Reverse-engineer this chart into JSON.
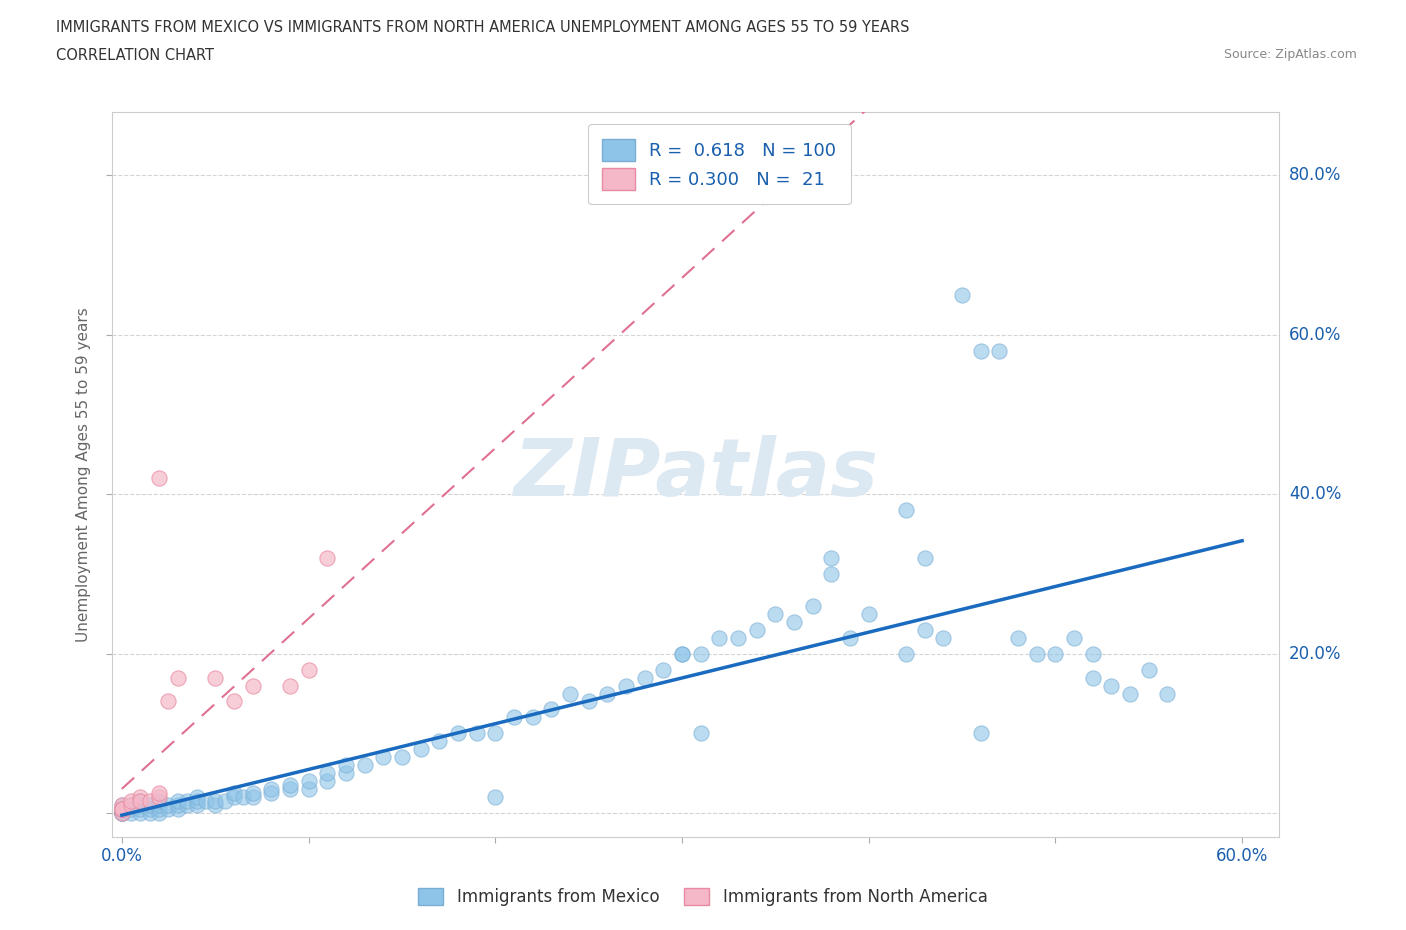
{
  "title_line1": "IMMIGRANTS FROM MEXICO VS IMMIGRANTS FROM NORTH AMERICA UNEMPLOYMENT AMONG AGES 55 TO 59 YEARS",
  "title_line2": "CORRELATION CHART",
  "source": "Source: ZipAtlas.com",
  "ylabel": "Unemployment Among Ages 55 to 59 years",
  "xlim": [
    -0.005,
    0.62
  ],
  "ylim": [
    -0.03,
    0.88
  ],
  "xticks": [
    0.0,
    0.1,
    0.2,
    0.3,
    0.4,
    0.5,
    0.6
  ],
  "xticklabels": [
    "0.0%",
    "",
    "",
    "",
    "",
    "",
    "60.0%"
  ],
  "yticks": [
    0.0,
    0.2,
    0.4,
    0.6,
    0.8
  ],
  "yticklabels_right": [
    "",
    "20.0%",
    "40.0%",
    "60.0%",
    "80.0%"
  ],
  "series1_label": "Immigrants from Mexico",
  "series1_color": "#8ec4e8",
  "series1_edge_color": "#7aadd4",
  "series1_line_color": "#1a6bbf",
  "series1_R": "0.618",
  "series1_N": "100",
  "series2_label": "Immigrants from North America",
  "series2_color": "#f5b8c8",
  "series2_edge_color": "#e88aa0",
  "series2_line_color": "#e07090",
  "series2_R": "0.300",
  "series2_N": "21",
  "legend_text_color": "#1a5fad",
  "background_color": "#ffffff",
  "watermark": "ZIPatlas",
  "grid_color": "#d0d0d0",
  "mexico_x": [
    0.0,
    0.0,
    0.0,
    0.0,
    0.0,
    0.0,
    0.0,
    0.005,
    0.005,
    0.005,
    0.01,
    0.01,
    0.01,
    0.01,
    0.015,
    0.015,
    0.015,
    0.02,
    0.02,
    0.02,
    0.02,
    0.025,
    0.025,
    0.03,
    0.03,
    0.03,
    0.035,
    0.035,
    0.04,
    0.04,
    0.04,
    0.045,
    0.05,
    0.05,
    0.055,
    0.06,
    0.06,
    0.065,
    0.07,
    0.07,
    0.08,
    0.08,
    0.09,
    0.09,
    0.1,
    0.1,
    0.11,
    0.11,
    0.12,
    0.12,
    0.13,
    0.14,
    0.15,
    0.16,
    0.17,
    0.18,
    0.19,
    0.2,
    0.21,
    0.22,
    0.23,
    0.24,
    0.25,
    0.26,
    0.27,
    0.28,
    0.29,
    0.3,
    0.31,
    0.32,
    0.33,
    0.34,
    0.35,
    0.36,
    0.37,
    0.38,
    0.39,
    0.4,
    0.42,
    0.43,
    0.44,
    0.45,
    0.46,
    0.47,
    0.48,
    0.49,
    0.5,
    0.51,
    0.52,
    0.53,
    0.54,
    0.55,
    0.56,
    0.42,
    0.43,
    0.52,
    0.38,
    0.3,
    0.31,
    0.2,
    0.46
  ],
  "mexico_y": [
    0.0,
    0.0,
    0.0,
    0.0,
    0.005,
    0.005,
    0.01,
    0.0,
    0.005,
    0.01,
    0.0,
    0.005,
    0.01,
    0.015,
    0.0,
    0.005,
    0.01,
    0.0,
    0.005,
    0.01,
    0.015,
    0.005,
    0.01,
    0.005,
    0.01,
    0.015,
    0.01,
    0.015,
    0.01,
    0.015,
    0.02,
    0.015,
    0.01,
    0.015,
    0.015,
    0.02,
    0.025,
    0.02,
    0.02,
    0.025,
    0.025,
    0.03,
    0.03,
    0.035,
    0.03,
    0.04,
    0.04,
    0.05,
    0.05,
    0.06,
    0.06,
    0.07,
    0.07,
    0.08,
    0.09,
    0.1,
    0.1,
    0.1,
    0.12,
    0.12,
    0.13,
    0.15,
    0.14,
    0.15,
    0.16,
    0.17,
    0.18,
    0.2,
    0.2,
    0.22,
    0.22,
    0.23,
    0.25,
    0.24,
    0.26,
    0.32,
    0.22,
    0.25,
    0.2,
    0.23,
    0.22,
    0.65,
    0.58,
    0.58,
    0.22,
    0.2,
    0.2,
    0.22,
    0.17,
    0.16,
    0.15,
    0.18,
    0.15,
    0.38,
    0.32,
    0.2,
    0.3,
    0.2,
    0.1,
    0.02,
    0.1
  ],
  "na_x": [
    0.02,
    0.0,
    0.0,
    0.0,
    0.0,
    0.0,
    0.005,
    0.005,
    0.01,
    0.01,
    0.015,
    0.02,
    0.02,
    0.025,
    0.03,
    0.05,
    0.06,
    0.07,
    0.09,
    0.1,
    0.11
  ],
  "na_y": [
    0.42,
    0.0,
    0.005,
    0.01,
    0.005,
    0.005,
    0.01,
    0.015,
    0.02,
    0.015,
    0.015,
    0.02,
    0.025,
    0.14,
    0.17,
    0.17,
    0.14,
    0.16,
    0.16,
    0.18,
    0.32
  ],
  "na_trend_x0": 0.0,
  "na_trend_x1": 0.6,
  "mexico_trend_x0": 0.0,
  "mexico_trend_x1": 0.6
}
